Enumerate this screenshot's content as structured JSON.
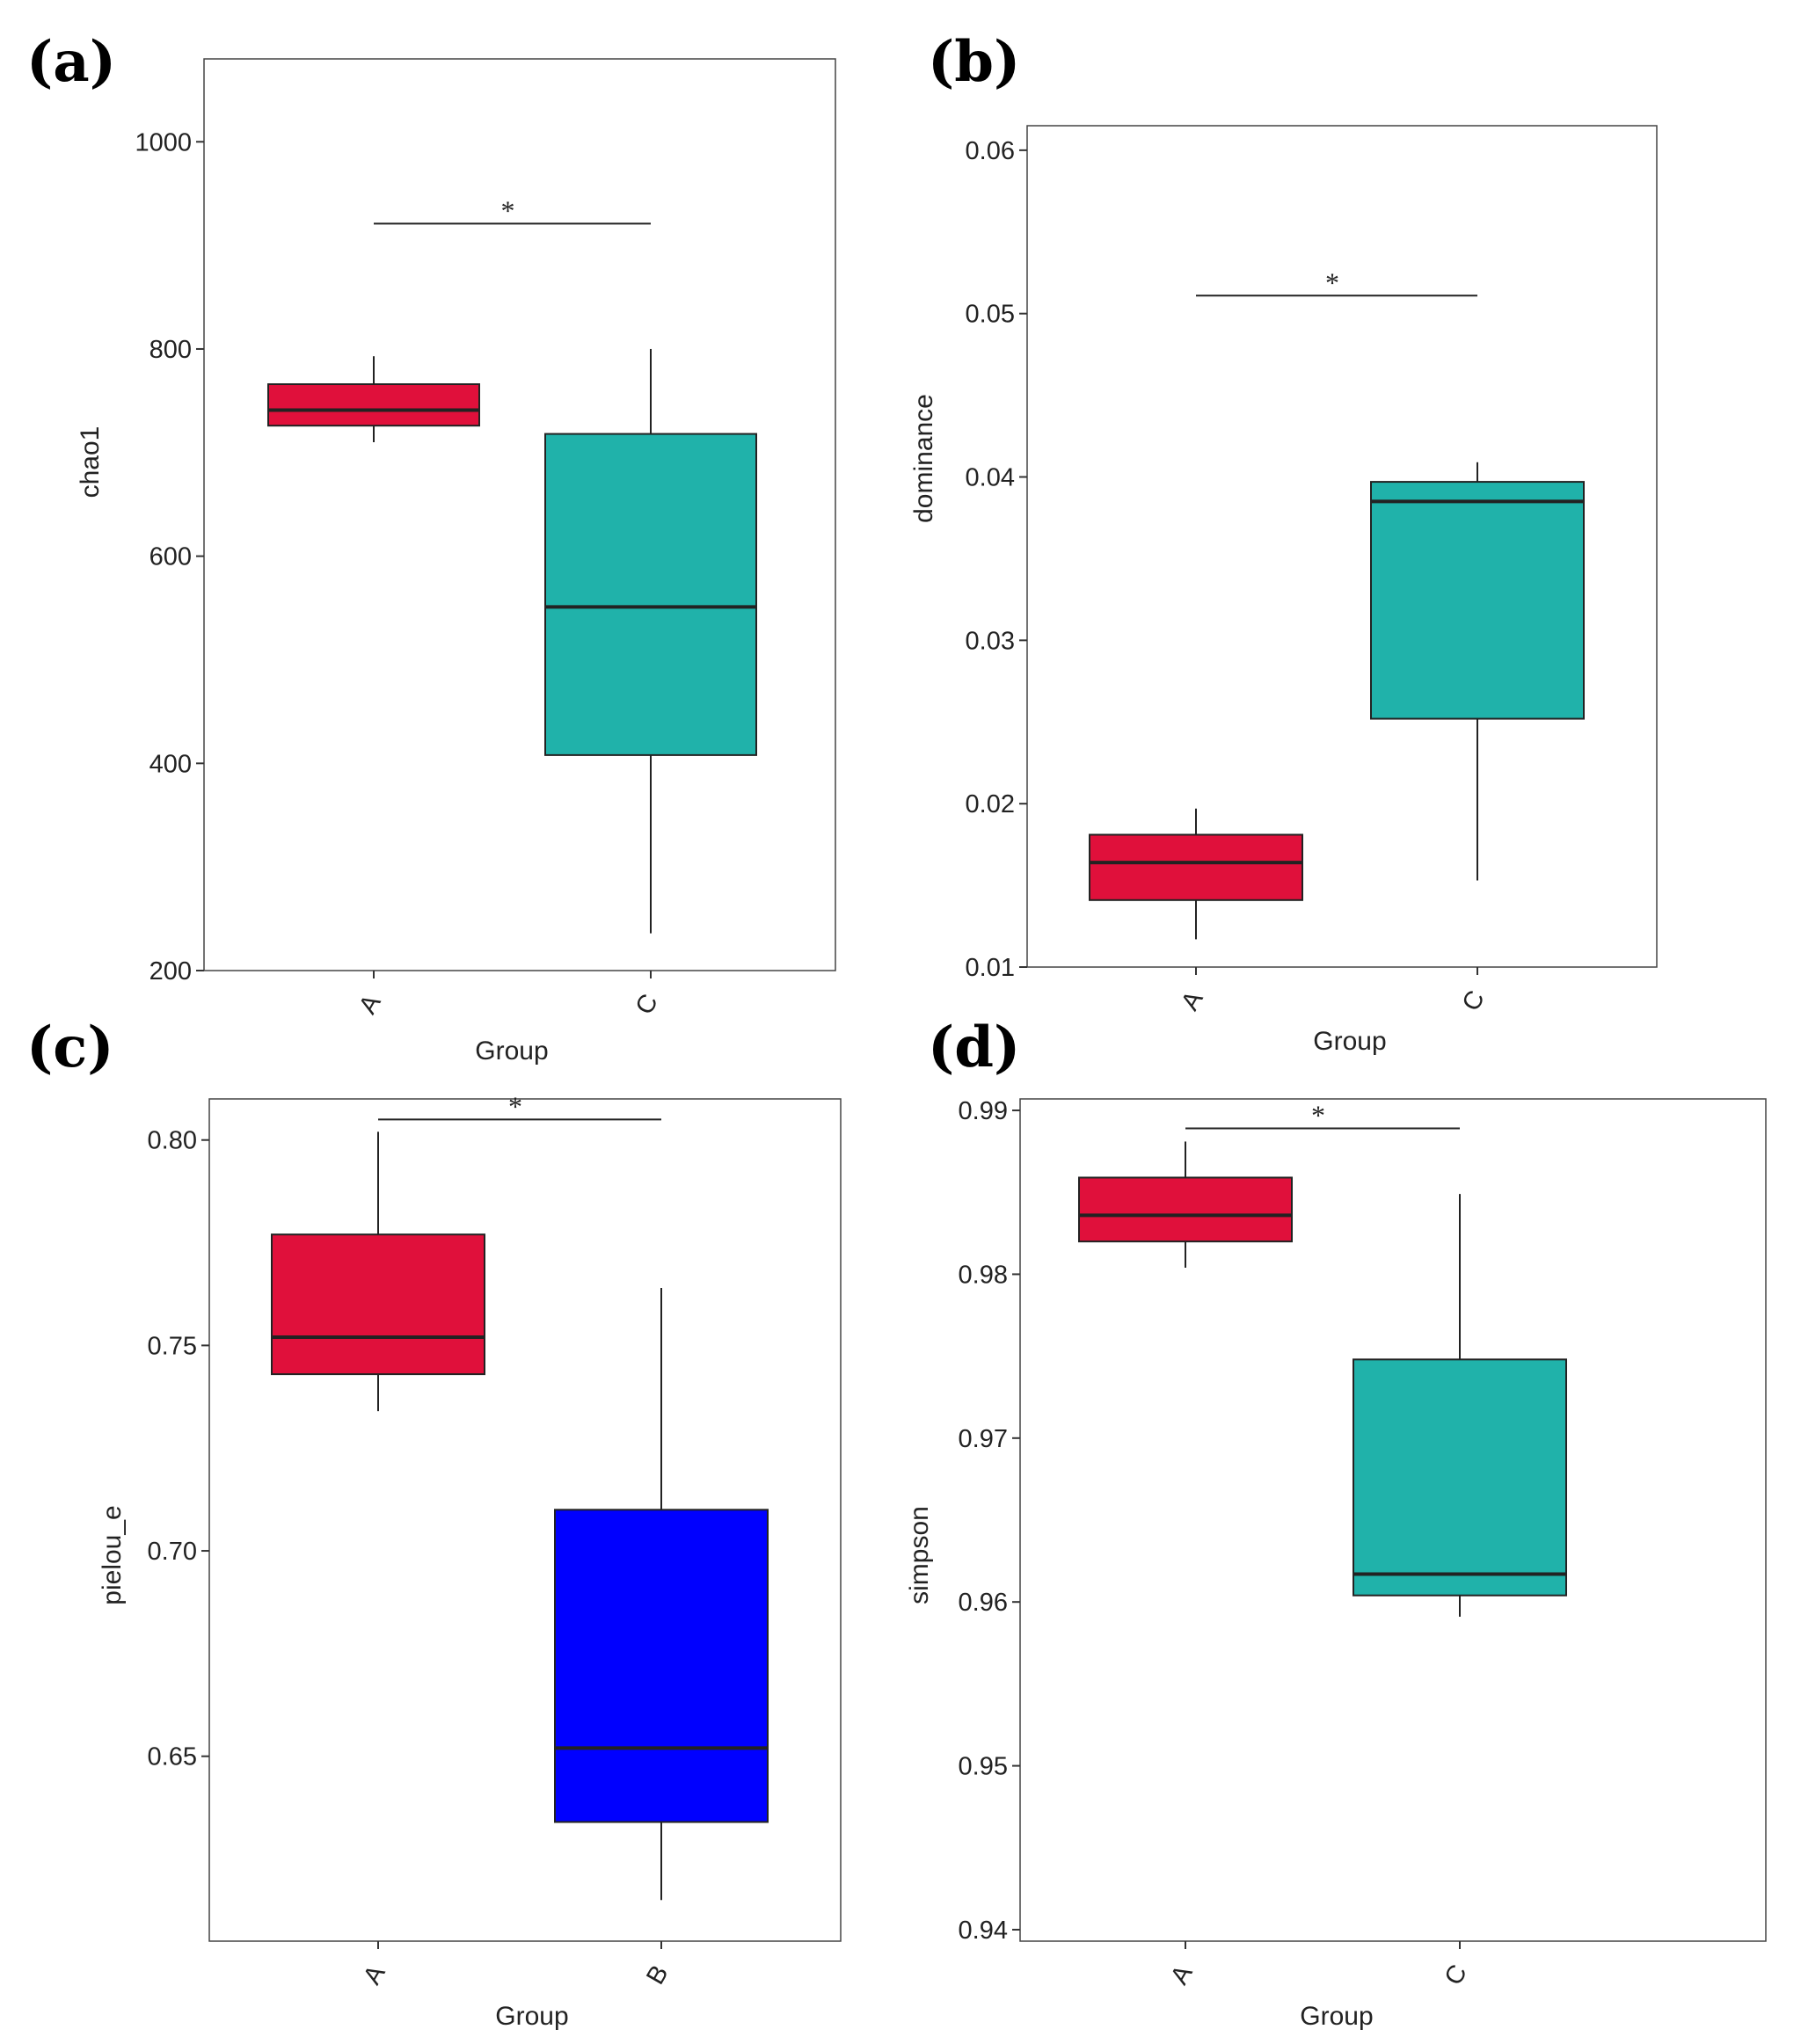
{
  "colors": {
    "red": "#E0103B",
    "teal": "#20B2AA",
    "blue": "#0000FF",
    "line": "#222222"
  },
  "chart_data": [
    {
      "type": "boxplot",
      "panel": "(a)",
      "xlabel": "Group",
      "ylabel": "chao1",
      "ylim": [
        200,
        1080
      ],
      "yticks": [
        "200",
        "400",
        "600",
        "800",
        "1000"
      ],
      "categories": [
        "A",
        "C"
      ],
      "boxes": [
        {
          "group": "A",
          "color": "#E0103B",
          "min": 710,
          "q1": 726,
          "median": 741,
          "q3": 766,
          "max": 793
        },
        {
          "group": "C",
          "color": "#20B2AA",
          "min": 236,
          "q1": 408,
          "median": 551,
          "q3": 718,
          "max": 800
        }
      ],
      "significance": {
        "from": "A",
        "to": "C",
        "y": 921,
        "label": "*"
      }
    },
    {
      "type": "boxplot",
      "panel": "(b)",
      "xlabel": "Group",
      "ylabel": "dominance",
      "ylim": [
        0.01,
        0.0615
      ],
      "yticks": [
        "0.01",
        "0.02",
        "0.03",
        "0.04",
        "0.05",
        "0.06"
      ],
      "categories": [
        "A",
        "C"
      ],
      "boxes": [
        {
          "group": "A",
          "color": "#E0103B",
          "min": 0.0117,
          "q1": 0.0141,
          "median": 0.0164,
          "q3": 0.0181,
          "max": 0.0197
        },
        {
          "group": "C",
          "color": "#20B2AA",
          "min": 0.0153,
          "q1": 0.0252,
          "median": 0.0385,
          "q3": 0.0397,
          "max": 0.0409
        }
      ],
      "significance": {
        "from": "A",
        "to": "C",
        "y": 0.0511,
        "label": "*"
      }
    },
    {
      "type": "boxplot",
      "panel": "(c)",
      "xlabel": "Group",
      "ylabel": "pielou_e",
      "ylim": [
        0.605,
        0.81
      ],
      "yticks": [
        "0.65",
        "0.70",
        "0.75",
        "0.80"
      ],
      "categories": [
        "A",
        "B"
      ],
      "boxes": [
        {
          "group": "A",
          "color": "#E0103B",
          "min": 0.734,
          "q1": 0.743,
          "median": 0.752,
          "q3": 0.777,
          "max": 0.802
        },
        {
          "group": "B",
          "color": "#0000FF",
          "min": 0.615,
          "q1": 0.634,
          "median": 0.652,
          "q3": 0.71,
          "max": 0.764
        }
      ],
      "significance": {
        "from": "A",
        "to": "B",
        "y": 0.805,
        "label": "*"
      }
    },
    {
      "type": "boxplot",
      "panel": "(d)",
      "xlabel": "Group",
      "ylabel": "simpson",
      "ylim": [
        0.9393,
        0.9907
      ],
      "yticks": [
        "0.94",
        "0.95",
        "0.96",
        "0.97",
        "0.98",
        "0.99"
      ],
      "categories": [
        "A",
        "C"
      ],
      "boxes": [
        {
          "group": "A",
          "color": "#E0103B",
          "min": 0.9804,
          "q1": 0.982,
          "median": 0.9836,
          "q3": 0.9859,
          "max": 0.9881
        },
        {
          "group": "C",
          "color": "#20B2AA",
          "min": 0.9591,
          "q1": 0.9604,
          "median": 0.9617,
          "q3": 0.9748,
          "max": 0.9849
        }
      ],
      "significance": {
        "from": "A",
        "to": "C",
        "y": 0.9889,
        "label": "*"
      }
    }
  ]
}
